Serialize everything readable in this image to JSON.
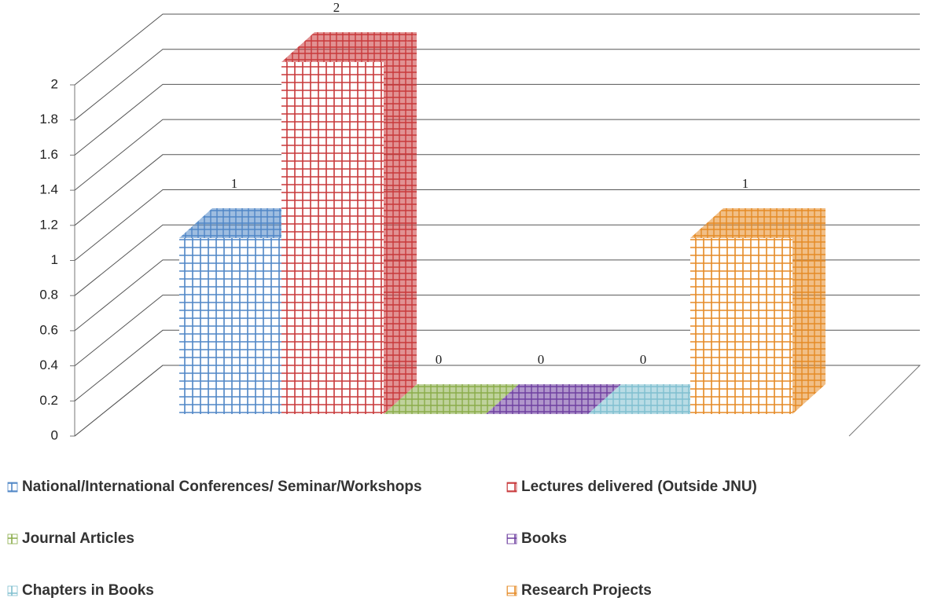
{
  "chart_data": {
    "type": "bar3d",
    "ylim": [
      0,
      2
    ],
    "yticks": [
      0,
      0.2,
      0.4,
      0.6,
      0.8,
      1,
      1.2,
      1.4,
      1.6,
      1.8,
      2
    ],
    "grid": true,
    "legend": "bottom",
    "series": [
      {
        "name": "National/International Conferences/ Seminar/Workshops",
        "color": "#4f86c6",
        "values": [
          1
        ]
      },
      {
        "name": "Lectures delivered (Outside JNU)",
        "color": "#c8383a",
        "values": [
          2
        ]
      },
      {
        "name": "Journal Articles",
        "color": "#8aac4a",
        "values": [
          0
        ]
      },
      {
        "name": "Books",
        "color": "#6e3fa0",
        "values": [
          0
        ]
      },
      {
        "name": "Chapters in Books",
        "color": "#7fbfcf",
        "values": [
          0
        ]
      },
      {
        "name": "Research Projects",
        "color": "#e58a25",
        "values": [
          1
        ]
      }
    ]
  }
}
